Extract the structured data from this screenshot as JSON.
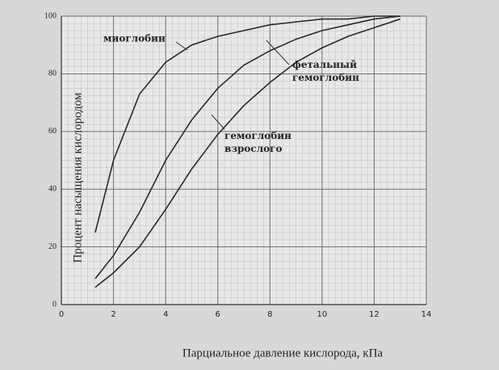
{
  "chart_data": {
    "type": "line",
    "x_label": "Парциальное давление кислорода, кПа",
    "y_label": "Процент насыщения кислородом",
    "x": [
      1.3,
      2,
      3,
      4,
      5,
      6,
      7,
      8,
      9,
      10,
      11,
      12,
      13
    ],
    "series": [
      {
        "name": "миоглобин",
        "color": "#2a2a2a",
        "values": [
          25,
          50,
          73,
          84,
          90,
          93,
          95,
          97,
          98,
          99,
          99,
          100,
          100
        ]
      },
      {
        "name": "фетальный гемоглобин",
        "color": "#2a2a2a",
        "values": [
          9,
          17,
          32,
          50,
          64,
          75,
          83,
          88,
          92,
          95,
          97,
          99,
          100
        ]
      },
      {
        "name": "гемоглобин взрослого",
        "color": "#2a2a2a",
        "values": [
          6,
          11,
          20,
          33,
          47,
          59,
          69,
          77,
          84,
          89,
          93,
          96,
          99
        ]
      }
    ],
    "xlim": [
      0,
      14
    ],
    "xticks": [
      0,
      2,
      4,
      6,
      8,
      10,
      12,
      14
    ],
    "ylim": [
      0,
      100
    ],
    "yticks": [
      0,
      20,
      40,
      60,
      80,
      100
    ],
    "grid": true
  }
}
